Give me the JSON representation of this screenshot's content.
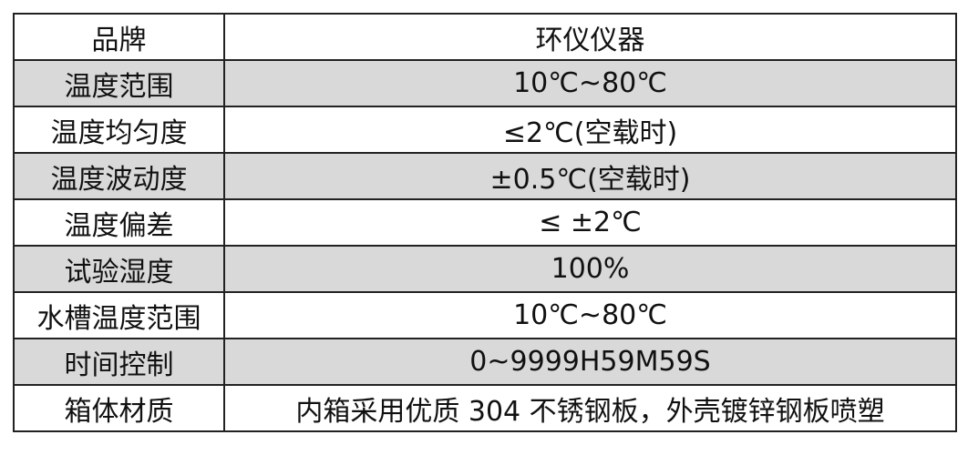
{
  "table": {
    "rows": [
      [
        "品牌",
        "环仪仪器"
      ],
      [
        "温度范围",
        "10℃~80℃"
      ],
      [
        "温度均匀度",
        "≤2℃(空载时)"
      ],
      [
        "温度波动度",
        "±0.5℃(空载时)"
      ],
      [
        "温度偏差",
        "≤ ±2℃"
      ],
      [
        "试验湿度",
        "100%"
      ],
      [
        "水槽温度范围",
        "10℃~80℃"
      ],
      [
        "时间控制",
        "0~9999H59M59S"
      ],
      [
        "箱体材质",
        "内箱采用优质 304 不锈钢板，外壳镀锌钢板喷塑"
      ]
    ]
  }
}
